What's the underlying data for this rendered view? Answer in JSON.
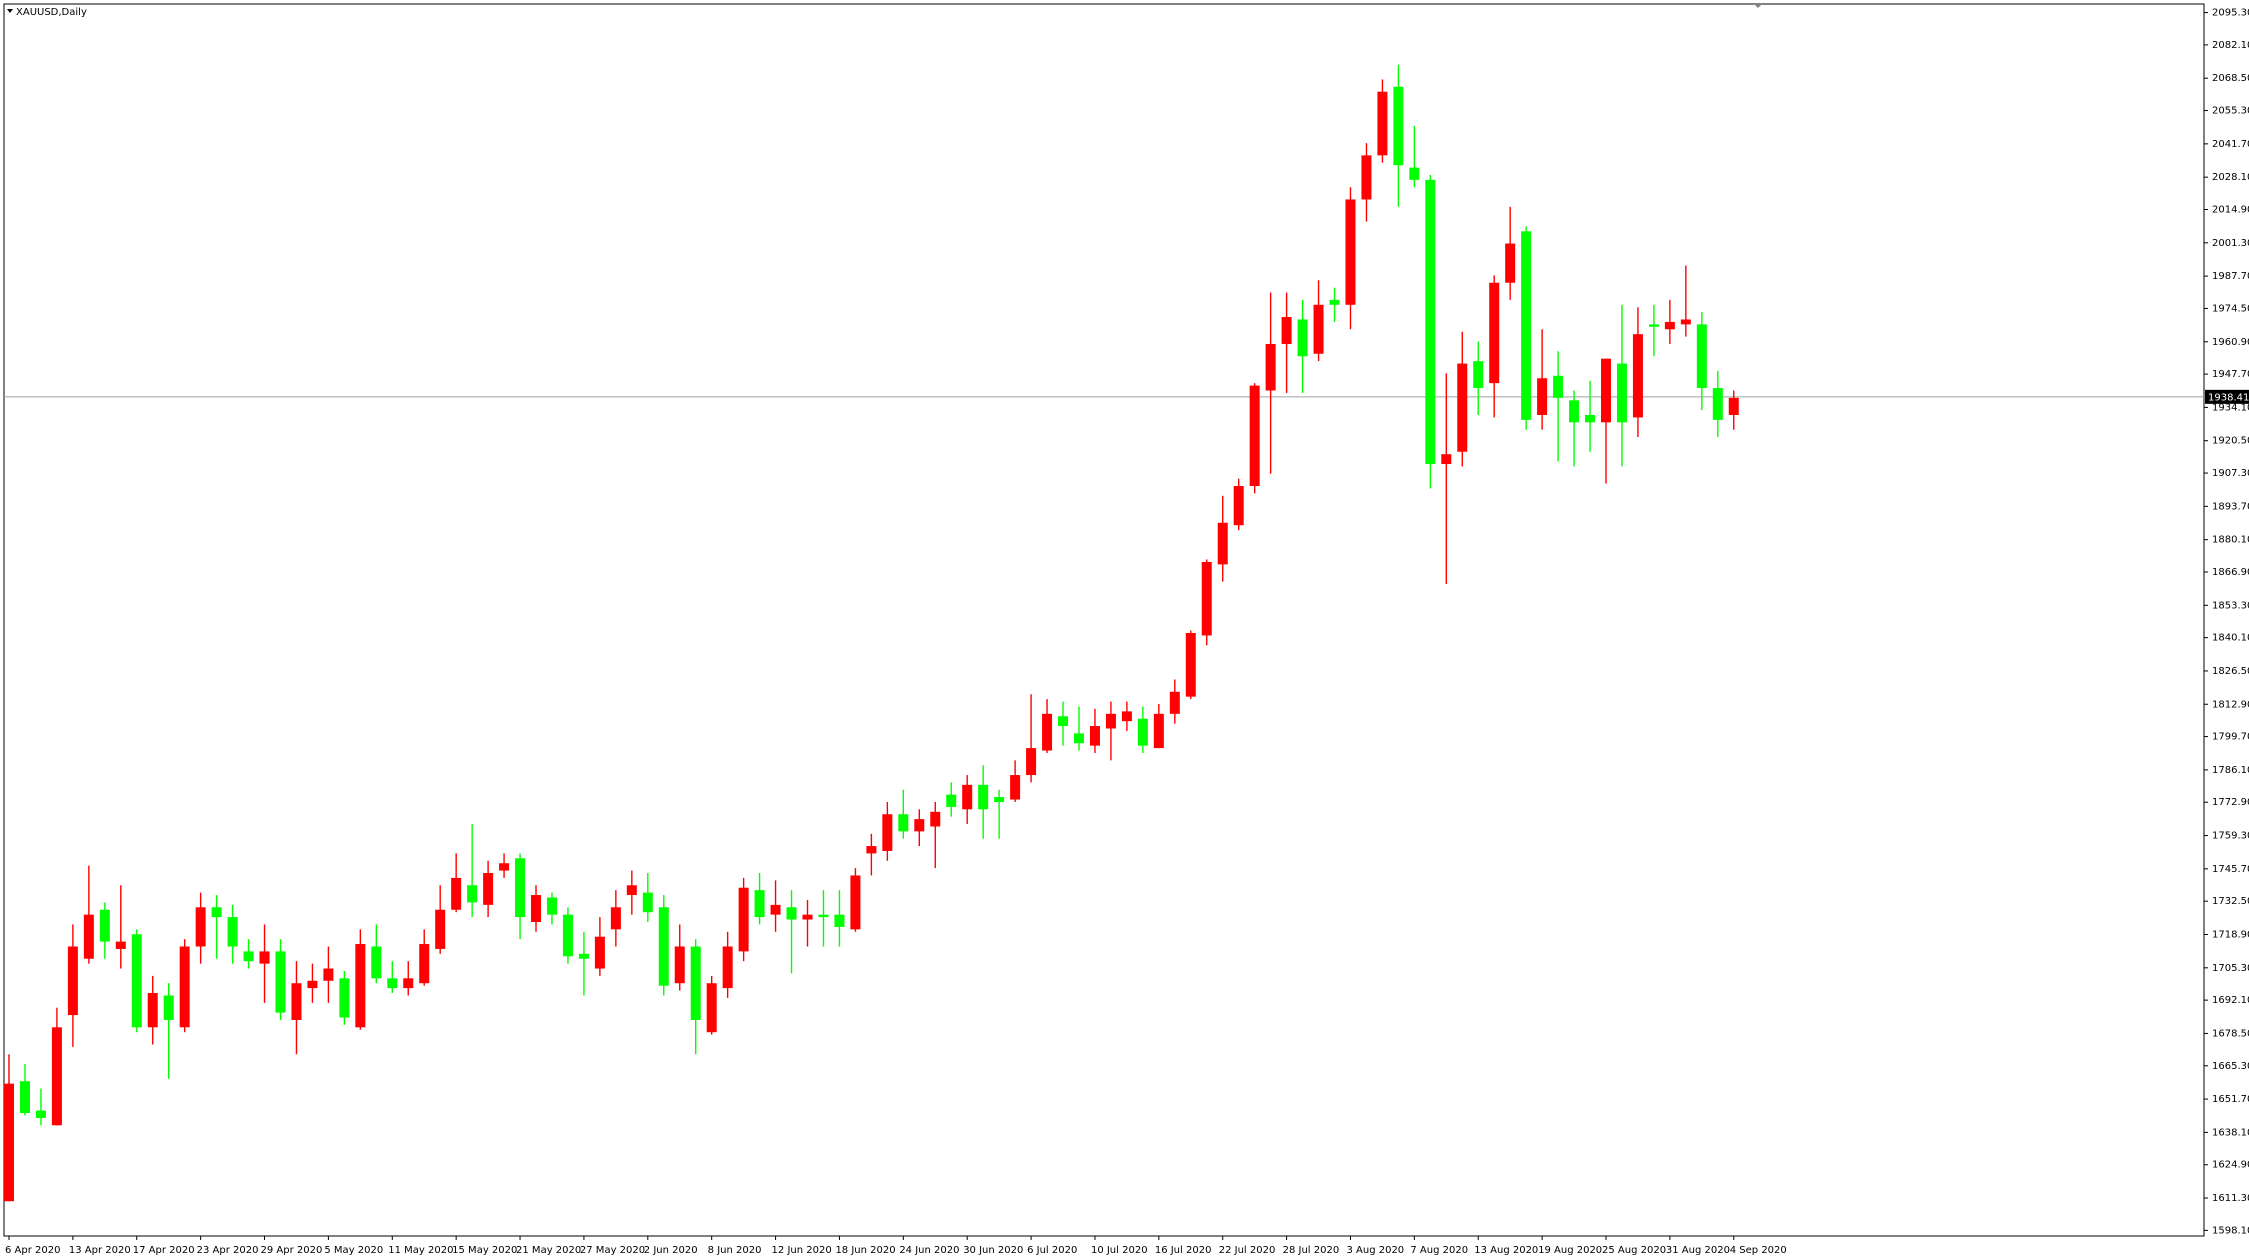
{
  "chart_data": {
    "type": "candlestick",
    "title": "XAUUSD,Daily",
    "up_color": "#ff0000",
    "down_color": "#00ff00",
    "categories": [
      "6 Apr 2020",
      null,
      null,
      null,
      "13 Apr 2020",
      null,
      null,
      null,
      "17 Apr 2020",
      null,
      null,
      null,
      "23 Apr 2020",
      null,
      null,
      null,
      "29 Apr 2020",
      null,
      null,
      null,
      "5 May 2020",
      null,
      null,
      null,
      "11 May 2020",
      null,
      null,
      null,
      "15 May 2020",
      null,
      null,
      null,
      "21 May 2020",
      null,
      null,
      null,
      "27 May 2020",
      null,
      null,
      null,
      "2 Jun 2020",
      null,
      null,
      null,
      "8 Jun 2020",
      null,
      null,
      null,
      "12 Jun 2020",
      null,
      null,
      null,
      "18 Jun 2020",
      null,
      null,
      null,
      "24 Jun 2020",
      null,
      null,
      null,
      "30 Jun 2020",
      null,
      null,
      null,
      "6 Jul 2020",
      null,
      null,
      null,
      "10 Jul 2020",
      null,
      null,
      null,
      "16 Jul 2020",
      null,
      null,
      null,
      "22 Jul 2020",
      null,
      null,
      null,
      "28 Jul 2020",
      null,
      null,
      null,
      "3 Aug 2020",
      null,
      null,
      null,
      "7 Aug 2020",
      null,
      null,
      null,
      "13 Aug 2020",
      null,
      null,
      null,
      "19 Aug 2020",
      null,
      null,
      null,
      "25 Aug 2020",
      null,
      null,
      null,
      "31 Aug 2020",
      null,
      null,
      null,
      "4 Sep 2020"
    ],
    "open": [
      1610,
      1659,
      1647,
      1641,
      1686,
      1709,
      1729,
      1713,
      1719,
      1681,
      1694,
      1681,
      1714,
      1730,
      1726,
      1712,
      1707,
      1712,
      1684,
      1697,
      1700,
      1701,
      1681,
      1714,
      1701,
      1697,
      1699,
      1713,
      1729,
      1739,
      1731,
      1745,
      1750,
      1724,
      1734,
      1727,
      1711,
      1705,
      1721,
      1735,
      1736,
      1730,
      1699,
      1714,
      1679,
      1697,
      1712,
      1737,
      1727,
      1730,
      1725,
      1727,
      1727,
      1721,
      1752,
      1753,
      1768,
      1761,
      1763,
      1776,
      1770,
      1780,
      1775,
      1774,
      1784,
      1794,
      1808,
      1801,
      1796,
      1803,
      1806,
      1807,
      1795,
      1809,
      1816,
      1841,
      1870,
      1886,
      1902,
      1941,
      1960,
      1970,
      1956,
      1978,
      1976,
      2019,
      2037,
      2065,
      2032,
      2027,
      1911,
      1916,
      1953,
      1944,
      1985,
      2006,
      1931,
      1947,
      1937,
      1931,
      1928,
      1952,
      1930,
      1968,
      1966,
      1968,
      1968,
      1942,
      1931
    ],
    "high": [
      1670,
      1666,
      1656,
      1689,
      1723,
      1747,
      1732,
      1739,
      1721,
      1702,
      1699,
      1717,
      1736,
      1735,
      1731,
      1717,
      1723,
      1717,
      1708,
      1707,
      1714,
      1704,
      1721,
      1723,
      1708,
      1708,
      1721,
      1739,
      1752,
      1764,
      1749,
      1752,
      1752,
      1739,
      1736,
      1730,
      1720,
      1726,
      1737,
      1745,
      1744,
      1735,
      1723,
      1717,
      1702,
      1720,
      1742,
      1744,
      1741,
      1737,
      1733,
      1737,
      1737,
      1746,
      1760,
      1773,
      1778,
      1770,
      1773,
      1781,
      1784,
      1788,
      1778,
      1790,
      1817,
      1815,
      1814,
      1812,
      1811,
      1814,
      1814,
      1812,
      1813,
      1823,
      1843,
      1872,
      1898,
      1905,
      1944,
      1981,
      1981,
      1978,
      1986,
      1983,
      2024,
      2042,
      2068,
      2074,
      2049,
      2029,
      1948,
      1965,
      1961,
      1988,
      2016,
      2008,
      1966,
      1957,
      1941,
      1945,
      1954,
      1976,
      1975,
      1976,
      1978,
      1992,
      1973,
      1949,
      1941
    ],
    "low": [
      1610,
      1645,
      1641,
      1641,
      1673,
      1707,
      1709,
      1705,
      1679,
      1674,
      1660,
      1679,
      1707,
      1709,
      1707,
      1705,
      1691,
      1684,
      1670,
      1691,
      1691,
      1682,
      1680,
      1699,
      1695,
      1694,
      1698,
      1711,
      1728,
      1726,
      1726,
      1742,
      1717,
      1720,
      1723,
      1707,
      1694,
      1702,
      1714,
      1727,
      1724,
      1694,
      1696,
      1670,
      1678,
      1693,
      1708,
      1723,
      1720,
      1703,
      1714,
      1714,
      1714,
      1720,
      1743,
      1749,
      1758,
      1755,
      1746,
      1767,
      1764,
      1758,
      1758,
      1773,
      1781,
      1793,
      1796,
      1794,
      1793,
      1790,
      1802,
      1793,
      1795,
      1805,
      1815,
      1837,
      1863,
      1884,
      1899,
      1907,
      1940,
      1940,
      1953,
      1969,
      1966,
      2010,
      2034,
      2016,
      2024,
      1901,
      1862,
      1910,
      1931,
      1930,
      1978,
      1925,
      1925,
      1912,
      1910,
      1916,
      1903,
      1910,
      1922,
      1955,
      1960,
      1963,
      1933,
      1922,
      1925
    ],
    "close": [
      1658,
      1646,
      1644,
      1681,
      1714,
      1727,
      1716,
      1716,
      1681,
      1695,
      1684,
      1714,
      1730,
      1726,
      1714,
      1708,
      1712,
      1687,
      1699,
      1700,
      1705,
      1685,
      1715,
      1701,
      1697,
      1701,
      1715,
      1729,
      1742,
      1732,
      1744,
      1748,
      1726,
      1735,
      1727,
      1710,
      1709,
      1718,
      1730,
      1739,
      1728,
      1698,
      1714,
      1684,
      1699,
      1714,
      1738,
      1726,
      1731,
      1725,
      1727,
      1726,
      1722,
      1743,
      1755,
      1768,
      1761,
      1766,
      1769,
      1771,
      1780,
      1770,
      1773,
      1784,
      1795,
      1809,
      1804,
      1797,
      1804,
      1809,
      1810,
      1796,
      1809,
      1818,
      1842,
      1871,
      1887,
      1902,
      1943,
      1960,
      1971,
      1955,
      1976,
      1976,
      2019,
      2037,
      2063,
      2033,
      2027,
      1911,
      1915,
      1952,
      1942,
      1985,
      2001,
      1929,
      1946,
      1938,
      1928,
      1928,
      1954,
      1928,
      1964,
      1967,
      1969,
      1970,
      1942,
      1929,
      1938
    ],
    "price_line": 1938.41,
    "ylim": [
      1595.8,
      2098.8
    ],
    "yticks": [
      {
        "value": 2095.3,
        "label": "2095.30"
      },
      {
        "value": 2082.1,
        "label": "2082.10"
      },
      {
        "value": 2068.5,
        "label": "2068.50"
      },
      {
        "value": 2055.3,
        "label": "2055.30"
      },
      {
        "value": 2041.7,
        "label": "2041.70"
      },
      {
        "value": 2028.1,
        "label": "2028.10"
      },
      {
        "value": 2014.9,
        "label": "2014.90"
      },
      {
        "value": 2001.3,
        "label": "2001.30"
      },
      {
        "value": 1987.7,
        "label": "1987.70"
      },
      {
        "value": 1974.5,
        "label": "1974.50"
      },
      {
        "value": 1960.9,
        "label": "1960.90"
      },
      {
        "value": 1947.7,
        "label": "1947.70"
      },
      {
        "value": 1934.1,
        "label": "1934.10"
      },
      {
        "value": 1920.5,
        "label": "1920.50"
      },
      {
        "value": 1907.3,
        "label": "1907.30"
      },
      {
        "value": 1893.7,
        "label": "1893.70"
      },
      {
        "value": 1880.1,
        "label": "1880.10"
      },
      {
        "value": 1866.9,
        "label": "1866.90"
      },
      {
        "value": 1853.3,
        "label": "1853.30"
      },
      {
        "value": 1840.1,
        "label": "1840.10"
      },
      {
        "value": 1826.5,
        "label": "1826.50"
      },
      {
        "value": 1812.9,
        "label": "1812.90"
      },
      {
        "value": 1799.7,
        "label": "1799.70"
      },
      {
        "value": 1786.1,
        "label": "1786.10"
      },
      {
        "value": 1772.9,
        "label": "1772.90"
      },
      {
        "value": 1759.3,
        "label": "1759.30"
      },
      {
        "value": 1745.7,
        "label": "1745.70"
      },
      {
        "value": 1732.5,
        "label": "1732.50"
      },
      {
        "value": 1718.9,
        "label": "1718.90"
      },
      {
        "value": 1705.3,
        "label": "1705.30"
      },
      {
        "value": 1692.1,
        "label": "1692.10"
      },
      {
        "value": 1678.5,
        "label": "1678.50"
      },
      {
        "value": 1665.3,
        "label": "1665.30"
      },
      {
        "value": 1651.7,
        "label": "1651.70"
      },
      {
        "value": 1638.1,
        "label": "1638.10"
      },
      {
        "value": 1624.9,
        "label": "1624.90"
      },
      {
        "value": 1611.3,
        "label": "1611.30"
      },
      {
        "value": 1598.1,
        "label": "1598.10"
      }
    ],
    "grid": false
  }
}
